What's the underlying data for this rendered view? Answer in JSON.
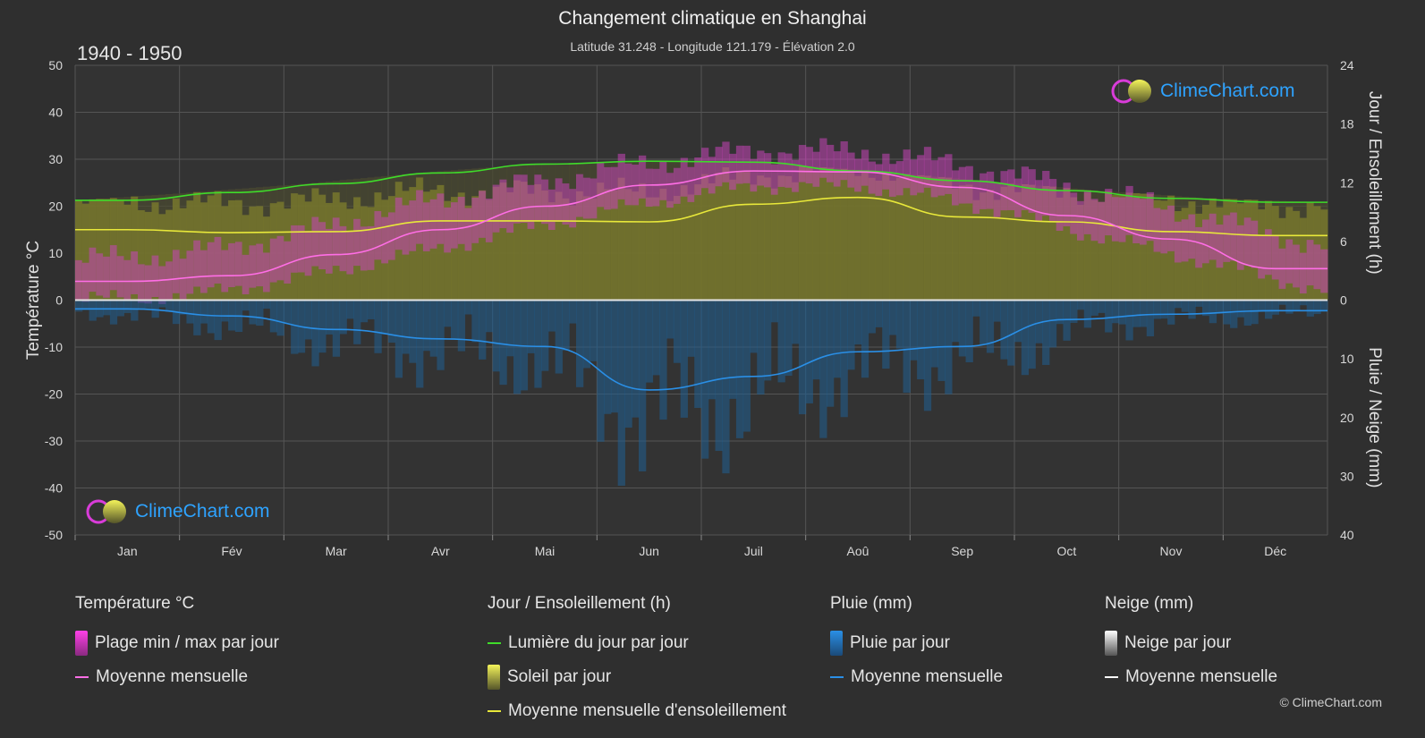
{
  "header": {
    "title": "Changement climatique en Shanghai",
    "subtitle": "Latitude 31.248 - Longitude 121.179 - Élévation 2.0",
    "period": "1940 - 1950"
  },
  "logo_text": "ClimeChart.com",
  "copyright": "© ClimeChart.com",
  "colors": {
    "background": "#2f2f2f",
    "daylight": "#3fdc2a",
    "sunshine_mean": "#e8e83a",
    "sunshine_fill": "#8a8a2a",
    "temp_mean": "#ff6ee6",
    "temp_range": "#d23cc8",
    "rain": "#2a8fe6",
    "snow": "#ffffff"
  },
  "legend": {
    "temperature": {
      "title": "Température °C",
      "range_label": "Plage min / max par jour",
      "mean_label": "Moyenne mensuelle"
    },
    "sun": {
      "title": "Jour / Ensoleillement (h)",
      "daylight_label": "Lumière du jour par jour",
      "sunshine_label": "Soleil par jour",
      "sunshine_mean_label": "Moyenne mensuelle d'ensoleillement"
    },
    "rain": {
      "title": "Pluie (mm)",
      "daily_label": "Pluie par jour",
      "mean_label": "Moyenne mensuelle"
    },
    "snow": {
      "title": "Neige (mm)",
      "daily_label": "Neige par jour",
      "mean_label": "Moyenne mensuelle"
    }
  },
  "chart_data": {
    "type": "line",
    "categories": [
      "Jan",
      "Fév",
      "Mar",
      "Avr",
      "Mai",
      "Jun",
      "Juil",
      "Aoû",
      "Sep",
      "Oct",
      "Nov",
      "Déc"
    ],
    "y_left": {
      "label": "Température °C",
      "range": [
        -50,
        50
      ],
      "ticks": [
        50,
        40,
        30,
        20,
        10,
        0,
        -10,
        -20,
        -30,
        -40,
        -50
      ]
    },
    "y_right_top": {
      "label": "Jour / Ensoleillement (h)",
      "range": [
        0,
        24
      ],
      "ticks": [
        24,
        18,
        12,
        6,
        0
      ]
    },
    "y_right_bottom": {
      "label": "Pluie / Neige (mm)",
      "range": [
        0,
        40
      ],
      "ticks": [
        0,
        10,
        20,
        30,
        40
      ]
    },
    "grid": true,
    "series": [
      {
        "name": "Lumière du jour par jour",
        "axis": "sun_h",
        "values": [
          10.2,
          11.0,
          11.9,
          13.0,
          13.9,
          14.2,
          14.1,
          13.2,
          12.2,
          11.2,
          10.4,
          10.0
        ]
      },
      {
        "name": "Moyenne mensuelle d'ensoleillement",
        "axis": "sun_h",
        "values": [
          7.2,
          6.9,
          7.0,
          8.1,
          8.1,
          8.0,
          9.8,
          10.5,
          8.5,
          8.0,
          7.0,
          6.6
        ]
      },
      {
        "name": "Moyenne mensuelle",
        "axis": "temp_c",
        "values": [
          4.0,
          5.2,
          9.7,
          15.0,
          20.0,
          24.5,
          27.5,
          27.3,
          24.0,
          18.0,
          13.0,
          6.7
        ]
      },
      {
        "name": "Moyenne mensuelle",
        "axis": "rain_mm",
        "values": [
          1.5,
          2.7,
          5.0,
          6.6,
          7.9,
          15.3,
          13.0,
          8.8,
          7.9,
          3.3,
          2.4,
          1.8
        ]
      }
    ],
    "temp_range_daily_approx": {
      "min": [
        0.0,
        1.0,
        5.0,
        10.0,
        15.5,
        20.5,
        24.5,
        24.0,
        20.0,
        13.5,
        8.0,
        2.0
      ],
      "max": [
        8.5,
        10.0,
        14.5,
        20.5,
        25.0,
        29.0,
        32.0,
        31.5,
        28.0,
        23.0,
        17.5,
        11.5
      ]
    }
  }
}
